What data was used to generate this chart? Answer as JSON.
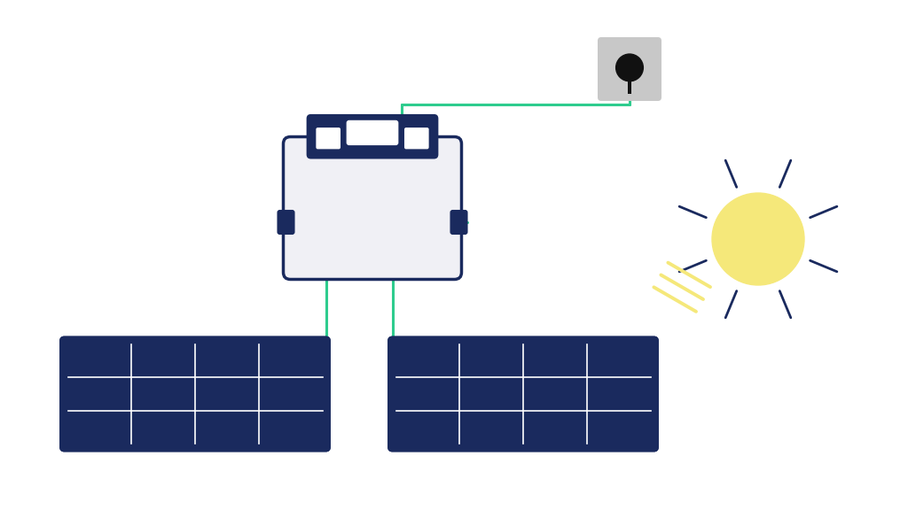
{
  "bg_color": "#ffffff",
  "navy": "#1a2a5e",
  "green": "#2ecc8e",
  "wire_color": "#2ecc8e",
  "sun_yellow": "#f5e87a",
  "socket_bg": "#cccccc",
  "socket_pin": "#111111",
  "inverter_body": "#f0f0f5",
  "panel_dark": "#1a2a5e",
  "panel_grid": "#ffffff"
}
